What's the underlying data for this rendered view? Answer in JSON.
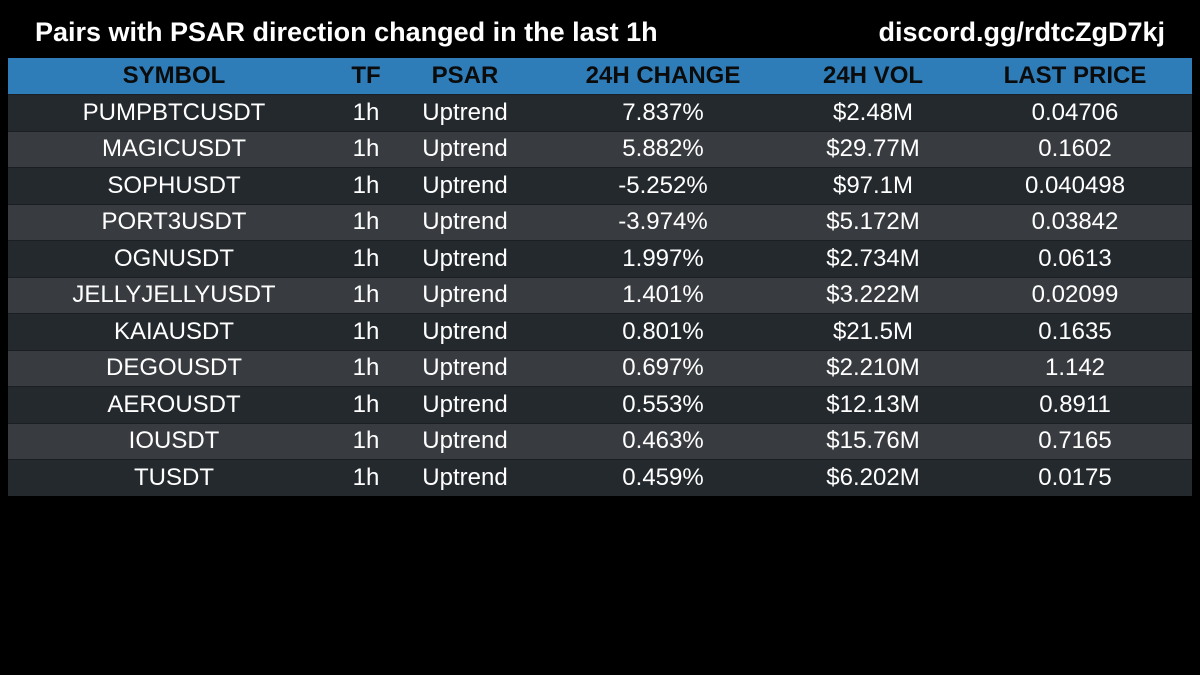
{
  "header": {
    "title": "Pairs with PSAR direction changed in the last 1h",
    "discord": "discord.gg/rdtcZgD7kj"
  },
  "table": {
    "columns": [
      "SYMBOL",
      "TF",
      "PSAR",
      "24H CHANGE",
      "24H VOL",
      "LAST PRICE"
    ],
    "rows": [
      [
        "PUMPBTCUSDT",
        "1h",
        "Uptrend",
        "7.837%",
        "$2.48M",
        "0.04706"
      ],
      [
        "MAGICUSDT",
        "1h",
        "Uptrend",
        "5.882%",
        "$29.77M",
        "0.1602"
      ],
      [
        "SOPHUSDT",
        "1h",
        "Uptrend",
        "-5.252%",
        "$97.1M",
        "0.040498"
      ],
      [
        "PORT3USDT",
        "1h",
        "Uptrend",
        "-3.974%",
        "$5.172M",
        "0.03842"
      ],
      [
        "OGNUSDT",
        "1h",
        "Uptrend",
        "1.997%",
        "$2.734M",
        "0.0613"
      ],
      [
        "JELLYJELLYUSDT",
        "1h",
        "Uptrend",
        "1.401%",
        "$3.222M",
        "0.02099"
      ],
      [
        "KAIAUSDT",
        "1h",
        "Uptrend",
        "0.801%",
        "$21.5M",
        "0.1635"
      ],
      [
        "DEGOUSDT",
        "1h",
        "Uptrend",
        "0.697%",
        "$2.210M",
        "1.142"
      ],
      [
        "AEROUSDT",
        "1h",
        "Uptrend",
        "0.553%",
        "$12.13M",
        "0.8911"
      ],
      [
        "IOUSDT",
        "1h",
        "Uptrend",
        "0.463%",
        "$15.76M",
        "0.7165"
      ],
      [
        "TUSDT",
        "1h",
        "Uptrend",
        "0.459%",
        "$6.202M",
        "0.0175"
      ]
    ]
  },
  "colors": {
    "background": "#000000",
    "header_row": "#2e7db8",
    "row_dark": "#24292e",
    "row_light": "#383c40",
    "text": "#ffffff"
  }
}
